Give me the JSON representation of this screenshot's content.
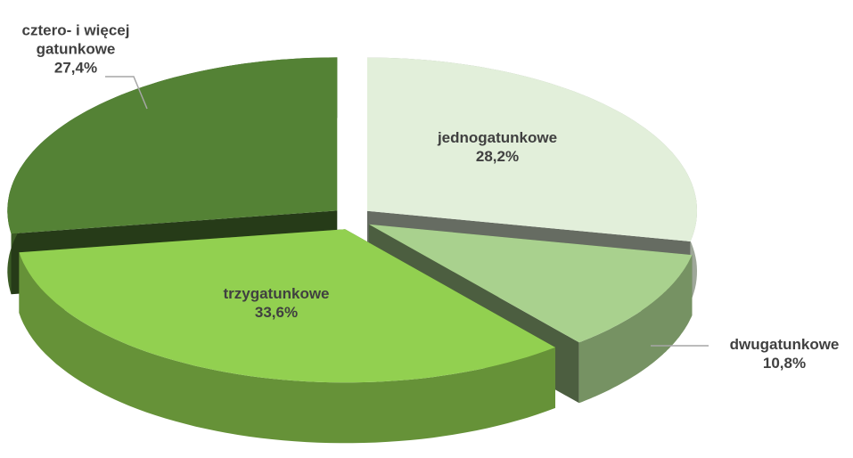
{
  "chart_data": {
    "type": "pie3d",
    "categories": [
      "jednogatunkowe",
      "dwugatunkowe",
      "trzygatunkowe",
      "cztero- i więcej gatunkowe"
    ],
    "values": [
      28.2,
      10.8,
      33.6,
      27.4
    ],
    "value_labels": [
      "28,2%",
      "10,8%",
      "33,6%",
      "27,4%"
    ],
    "colors": [
      "#e2efda",
      "#a9d18e",
      "#92d050",
      "#548235"
    ]
  }
}
